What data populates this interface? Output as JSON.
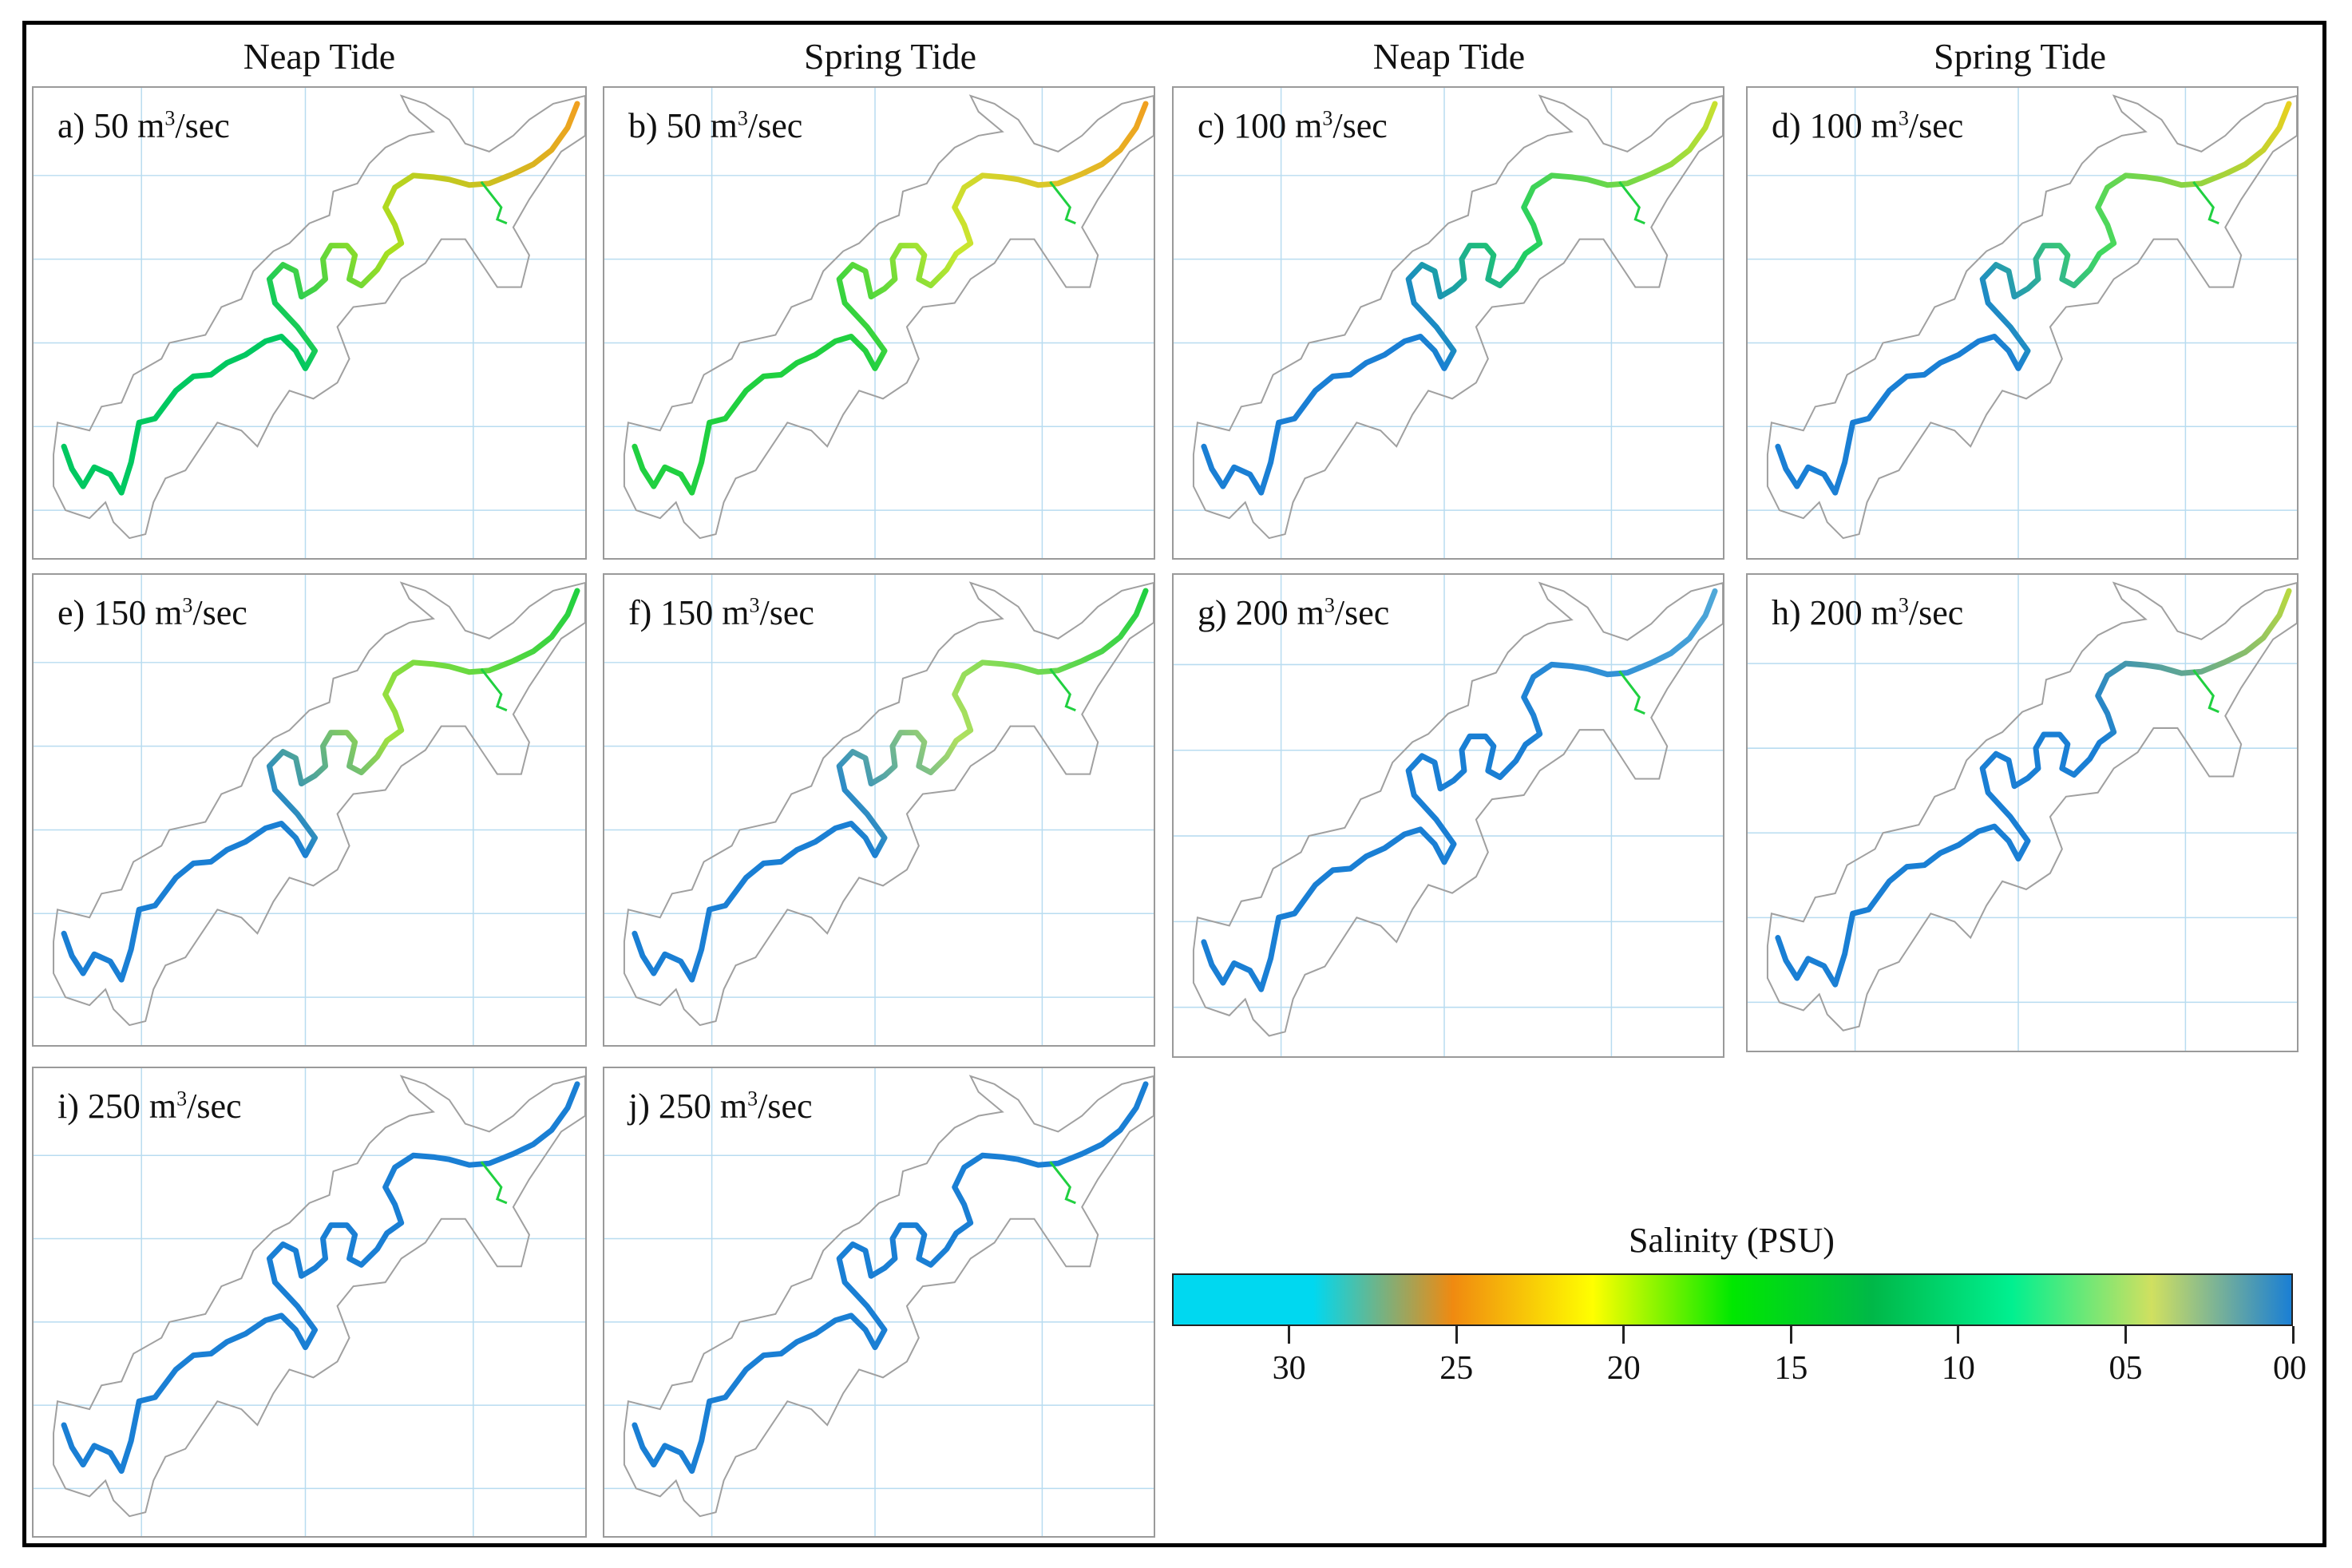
{
  "column_headers": [
    "Neap Tide",
    "Spring Tide",
    "Neap Tide",
    "Spring Tide"
  ],
  "panels": [
    {
      "label": "a) 50 m",
      "unit_tail": "/sec",
      "upstream_color": "#f0a020",
      "mid_color": "#a8e020",
      "lower_color": "#00c860"
    },
    {
      "label": "b) 50 m",
      "unit_tail": "/sec",
      "upstream_color": "#f0a020",
      "mid_color": "#c8e830",
      "lower_color": "#20d040"
    },
    {
      "label": "c) 100 m",
      "unit_tail": "/sec",
      "upstream_color": "#c8e030",
      "mid_color": "#20d060",
      "lower_color": "#1a7fd4"
    },
    {
      "label": "d) 100 m",
      "unit_tail": "/sec",
      "upstream_color": "#e8d020",
      "mid_color": "#40d860",
      "lower_color": "#1a7fd4"
    },
    {
      "label": "e) 150 m",
      "unit_tail": "/sec",
      "upstream_color": "#20d040",
      "mid_color": "#a0e040",
      "lower_color": "#1a7fd4"
    },
    {
      "label": "f) 150 m",
      "unit_tail": "/sec",
      "upstream_color": "#20d040",
      "mid_color": "#b0e060",
      "lower_color": "#1a7fd4"
    },
    {
      "label": "g) 200 m",
      "unit_tail": "/sec",
      "upstream_color": "#50a8d8",
      "mid_color": "#1a7fd4",
      "lower_color": "#1a7fd4"
    },
    {
      "label": "h) 200 m",
      "unit_tail": "/sec",
      "upstream_color": "#b8d840",
      "mid_color": "#1a7fd4",
      "lower_color": "#1a7fd4"
    },
    {
      "label": "i) 250 m",
      "unit_tail": "/sec",
      "upstream_color": "#1a7fd4",
      "mid_color": "#1a7fd4",
      "lower_color": "#1a7fd4"
    },
    {
      "label": "j) 250 m",
      "unit_tail": "/sec",
      "upstream_color": "#1a7fd4",
      "mid_color": "#1a7fd4",
      "lower_color": "#1a7fd4"
    }
  ],
  "legend": {
    "title": "Salinity (PSU)",
    "ticks": [
      {
        "label": "30",
        "value": 30
      },
      {
        "label": "25",
        "value": 25
      },
      {
        "label": "20",
        "value": 20
      },
      {
        "label": "15",
        "value": 15
      },
      {
        "label": "10",
        "value": 10
      },
      {
        "label": "05",
        "value": 5
      },
      {
        "label": "00",
        "value": 0
      }
    ],
    "range": [
      33.5,
      0
    ],
    "colors": [
      "#00d8f0",
      "#00d8f0",
      "#f08a10",
      "#ffff00",
      "#00e800",
      "#00b848",
      "#00f090",
      "#d0e060",
      "#1a7fd4"
    ]
  }
}
